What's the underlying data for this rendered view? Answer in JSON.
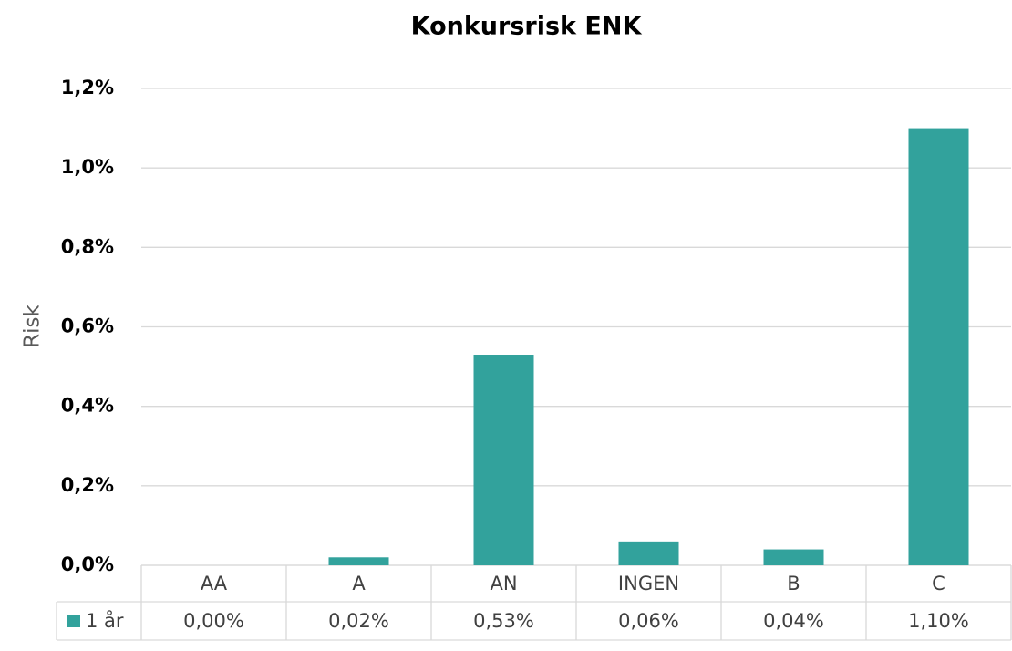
{
  "chart_data": {
    "type": "bar",
    "title": "Konkursrisk ENK",
    "y_label": "Risk",
    "categories": [
      "AA",
      "A",
      "AN",
      "INGEN",
      "B",
      "C"
    ],
    "series": [
      {
        "name": "1 år",
        "color": "#32a29c",
        "values": [
          0.0,
          0.02,
          0.53,
          0.06,
          0.04,
          1.1
        ],
        "value_labels": [
          "0,00%",
          "0,02%",
          "0,53%",
          "0,06%",
          "0,04%",
          "1,10%"
        ]
      }
    ],
    "ylim": [
      0,
      1.2
    ],
    "yticks": [
      {
        "value": 0,
        "label": "0,0%"
      },
      {
        "value": 0.2,
        "label": "0,2%"
      },
      {
        "value": 0.4,
        "label": "0,4%"
      },
      {
        "value": 0.6,
        "label": "0,6%"
      },
      {
        "value": 0.8,
        "label": "0,8%"
      },
      {
        "value": 1.0,
        "label": "1,0%"
      },
      {
        "value": 1.2,
        "label": "1,2%"
      }
    ],
    "grid": true,
    "data_table": true
  }
}
